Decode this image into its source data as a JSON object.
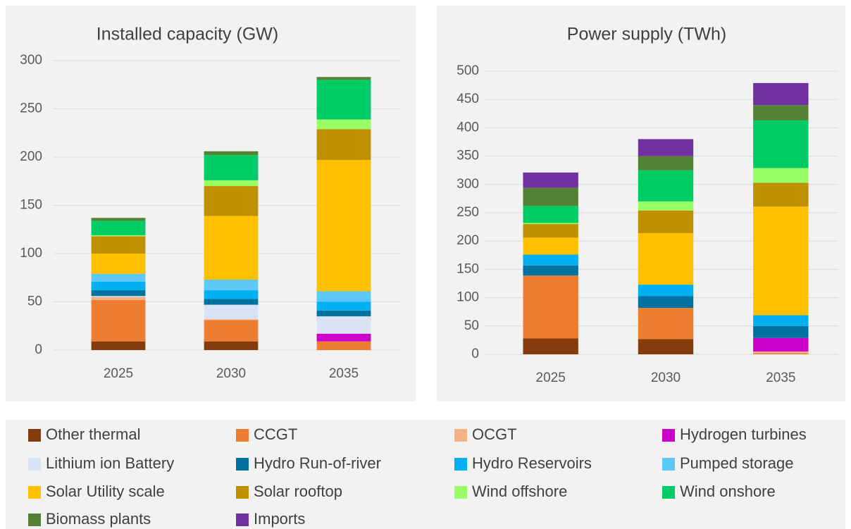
{
  "chart_data": [
    {
      "type": "stacked_bar",
      "title": "Installed capacity (GW)",
      "categories": [
        "2025",
        "2030",
        "2035"
      ],
      "ylim": [
        0,
        300
      ],
      "yticks": [
        0,
        50,
        100,
        150,
        200,
        250,
        300
      ],
      "grid": true,
      "series": [
        {
          "name": "Other thermal",
          "color": "#843c0c",
          "values": [
            9,
            9,
            0
          ]
        },
        {
          "name": "CCGT",
          "color": "#ed7d31",
          "values": [
            43,
            22,
            9
          ]
        },
        {
          "name": "OCGT",
          "color": "#f4b183",
          "values": [
            3,
            1,
            0
          ]
        },
        {
          "name": "Hydrogen turbines",
          "color": "#cc00cc",
          "values": [
            0,
            0,
            8
          ]
        },
        {
          "name": "Lithium ion Battery",
          "color": "#dae3f3",
          "values": [
            1,
            15,
            18
          ]
        },
        {
          "name": "Hydro Run-of-river",
          "color": "#0072a0",
          "values": [
            6,
            6,
            6
          ]
        },
        {
          "name": "Hydro Reservoirs",
          "color": "#00b0f0",
          "values": [
            9,
            9,
            9
          ]
        },
        {
          "name": "Pumped storage",
          "color": "#5bc8f5",
          "values": [
            8,
            11,
            11
          ]
        },
        {
          "name": "Solar Utility scale",
          "color": "#ffc000",
          "values": [
            21,
            66,
            136
          ]
        },
        {
          "name": "Solar rooftop",
          "color": "#bf9000",
          "values": [
            18,
            31,
            32
          ]
        },
        {
          "name": "Wind offshore",
          "color": "#99ff66",
          "values": [
            1,
            6,
            10
          ]
        },
        {
          "name": "Wind onshore",
          "color": "#00cc66",
          "values": [
            15,
            26,
            41
          ]
        },
        {
          "name": "Biomass plants",
          "color": "#548235",
          "values": [
            3,
            4,
            3
          ]
        },
        {
          "name": "Imports",
          "color": "#7030a0",
          "values": [
            0,
            0,
            0
          ]
        }
      ]
    },
    {
      "type": "stacked_bar",
      "title": "Power supply (TWh)",
      "categories": [
        "2025",
        "2030",
        "2035"
      ],
      "ylim": [
        0,
        500
      ],
      "yticks": [
        0,
        50,
        100,
        150,
        200,
        250,
        300,
        350,
        400,
        450,
        500
      ],
      "grid": true,
      "series": [
        {
          "name": "Other thermal",
          "color": "#843c0c",
          "values": [
            28,
            27,
            0
          ]
        },
        {
          "name": "CCGT",
          "color": "#ed7d31",
          "values": [
            111,
            55,
            2
          ]
        },
        {
          "name": "OCGT",
          "color": "#f4b183",
          "values": [
            0,
            0,
            3
          ]
        },
        {
          "name": "Hydrogen turbines",
          "color": "#cc00cc",
          "values": [
            0,
            0,
            24
          ]
        },
        {
          "name": "Lithium ion Battery",
          "color": "#dae3f3",
          "values": [
            0,
            0,
            0
          ]
        },
        {
          "name": "Hydro Run-of-river",
          "color": "#0072a0",
          "values": [
            18,
            21,
            21
          ]
        },
        {
          "name": "Hydro Reservoirs",
          "color": "#00b0f0",
          "values": [
            19,
            20,
            19
          ]
        },
        {
          "name": "Pumped storage",
          "color": "#5bc8f5",
          "values": [
            0,
            0,
            0
          ]
        },
        {
          "name": "Solar Utility scale",
          "color": "#ffc000",
          "values": [
            30,
            91,
            192
          ]
        },
        {
          "name": "Solar rooftop",
          "color": "#bf9000",
          "values": [
            24,
            40,
            42
          ]
        },
        {
          "name": "Wind offshore",
          "color": "#99ff66",
          "values": [
            2,
            16,
            26
          ]
        },
        {
          "name": "Wind onshore",
          "color": "#00cc66",
          "values": [
            30,
            55,
            84
          ]
        },
        {
          "name": "Biomass plants",
          "color": "#548235",
          "values": [
            32,
            25,
            27
          ]
        },
        {
          "name": "Imports",
          "color": "#7030a0",
          "values": [
            27,
            30,
            39
          ]
        }
      ]
    }
  ]
}
